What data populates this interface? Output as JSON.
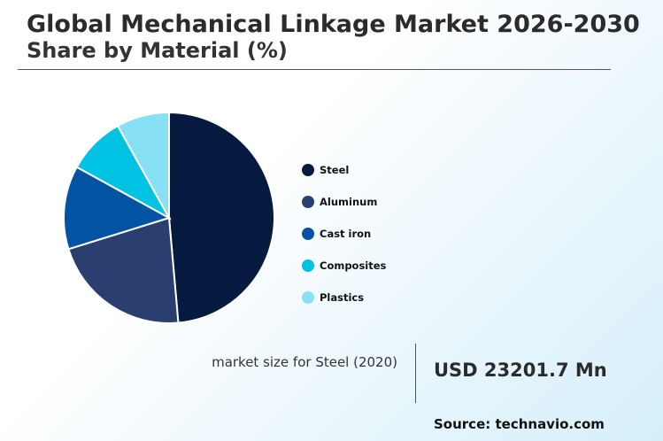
{
  "header": {
    "title": "Global Mechanical Linkage Market 2026-2030",
    "subtitle": "Share by Material (%)"
  },
  "chart_data": {
    "type": "pie",
    "title": "Share by Material (%)",
    "slices": [
      {
        "label": "Steel",
        "value": 48.6,
        "color": "#061a40"
      },
      {
        "label": "Aluminum",
        "value": 21.6,
        "color": "#2a3f6f"
      },
      {
        "label": "Cast iron",
        "value": 12.8,
        "color": "#0353a4"
      },
      {
        "label": "Composites",
        "value": 8.9,
        "color": "#00c2e3"
      },
      {
        "label": "Plastics",
        "value": 8.1,
        "color": "#87e0f4"
      }
    ],
    "legend_position": "right"
  },
  "stat": {
    "label": "market size for Steel (2020)",
    "value": "USD 23201.7 Mn"
  },
  "source": "Source: technavio.com"
}
